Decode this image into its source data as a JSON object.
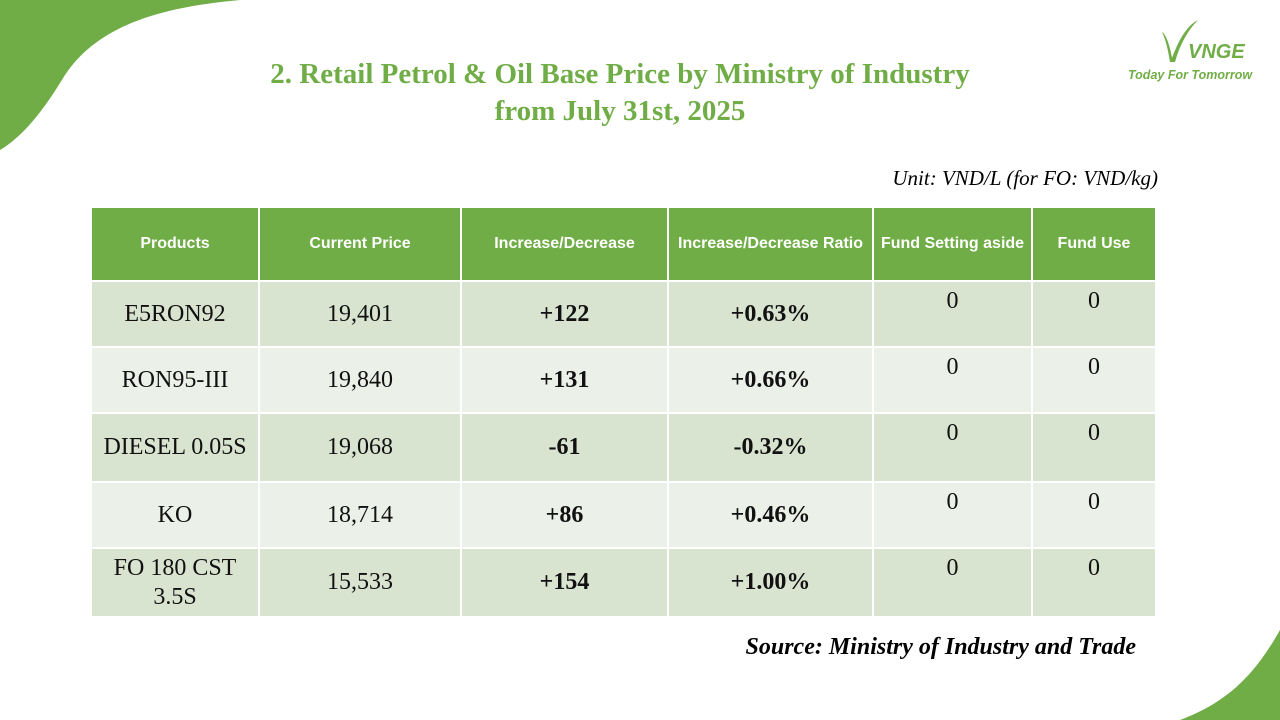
{
  "title": {
    "line1": "2. Retail Petrol & Oil Base Price by Ministry of Industry",
    "line2": "from July 31st, 2025"
  },
  "logo": {
    "mark": "VNGE",
    "tagline": "Today For Tomorrow"
  },
  "unit": "Unit: VND/L (for FO: VND/kg)",
  "table": {
    "headers": {
      "products": "Products",
      "current_price": "Current Price",
      "change": "Increase/Decrease",
      "ratio": "Increase/Decrease Ratio",
      "fund_setting": "Fund Setting aside",
      "fund_use": "Fund Use"
    },
    "rows": [
      {
        "product": "E5RON92",
        "price": "19,401",
        "change": "+122",
        "ratio": "+0.63%",
        "fund_setting": "0",
        "fund_use": "0"
      },
      {
        "product": "RON95-III",
        "price": "19,840",
        "change": "+131",
        "ratio": "+0.66%",
        "fund_setting": "0",
        "fund_use": "0"
      },
      {
        "product": "DIESEL 0.05S",
        "price": "19,068",
        "change": "-61",
        "ratio": "-0.32%",
        "fund_setting": "0",
        "fund_use": "0"
      },
      {
        "product": "KO",
        "price": "18,714",
        "change": "+86",
        "ratio": "+0.46%",
        "fund_setting": "0",
        "fund_use": "0"
      },
      {
        "product": "FO 180 CST 3.5S",
        "price": "15,533",
        "change": "+154",
        "ratio": "+1.00%",
        "fund_setting": "0",
        "fund_use": "0"
      }
    ]
  },
  "source": "Source: Ministry of Industry and Trade",
  "colors": {
    "accent_green": "#70ad47",
    "increase": "#00a651",
    "decrease": "#e00000",
    "row_dark": "#d8e4d0",
    "row_light": "#ebf0e8"
  }
}
